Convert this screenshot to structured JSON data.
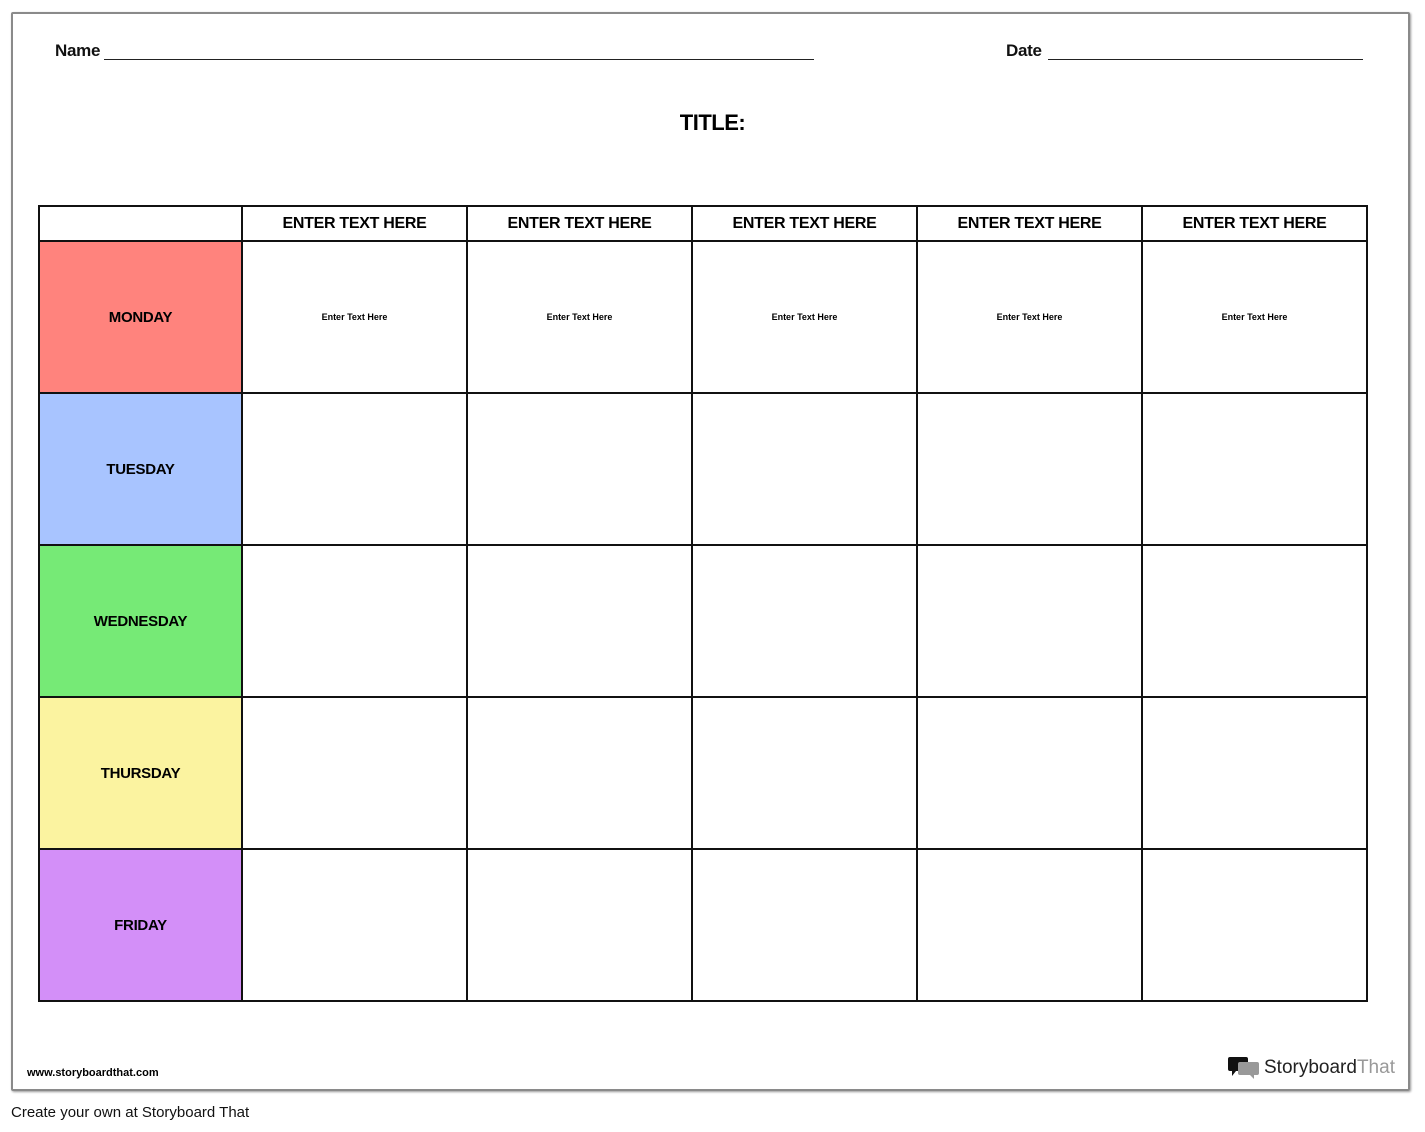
{
  "header": {
    "name_label": "Name",
    "date_label": "Date",
    "title": "TITLE:"
  },
  "table": {
    "columns": [
      "ENTER TEXT HERE",
      "ENTER TEXT HERE",
      "ENTER TEXT HERE",
      "ENTER TEXT HERE",
      "ENTER TEXT HERE"
    ],
    "rows": [
      {
        "day": "MONDAY",
        "color": "#ff837d",
        "cells": [
          "Enter Text Here",
          "Enter Text Here",
          "Enter Text Here",
          "Enter Text Here",
          "Enter Text Here"
        ]
      },
      {
        "day": "TUESDAY",
        "color": "#a8c4ff",
        "cells": [
          "",
          "",
          "",
          "",
          ""
        ]
      },
      {
        "day": "WEDNESDAY",
        "color": "#76ea76",
        "cells": [
          "",
          "",
          "",
          "",
          ""
        ]
      },
      {
        "day": "THURSDAY",
        "color": "#fbf3a0",
        "cells": [
          "",
          "",
          "",
          "",
          ""
        ]
      },
      {
        "day": "FRIDAY",
        "color": "#d38ff8",
        "cells": [
          "",
          "",
          "",
          "",
          ""
        ]
      }
    ]
  },
  "footer": {
    "url": "www.storyboardthat.com",
    "logo_word1": "Storyboard",
    "logo_word2": "That",
    "create_text": "Create your own at Storyboard That"
  }
}
